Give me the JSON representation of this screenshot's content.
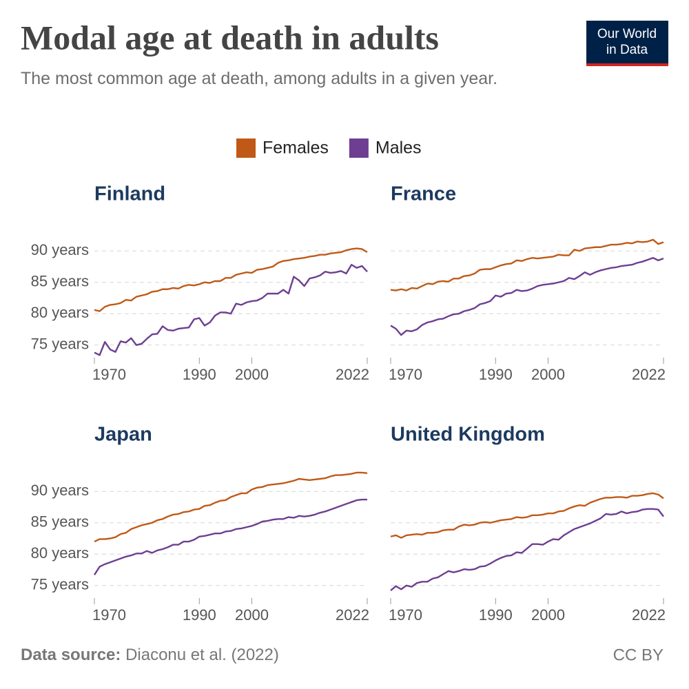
{
  "title": "Modal age at death in adults",
  "subtitle": "The most common age at death, among adults in a given year.",
  "logo": [
    "Our World",
    "in Data"
  ],
  "source_label": "Data source:",
  "source": "Diaconu et al. (2022)",
  "license": "CC BY",
  "chart_data": [
    {
      "type": "line",
      "title": "Finland",
      "x": [
        1970,
        1971,
        1972,
        1973,
        1974,
        1975,
        1976,
        1977,
        1978,
        1979,
        1980,
        1981,
        1982,
        1983,
        1984,
        1985,
        1986,
        1987,
        1988,
        1989,
        1990,
        1991,
        1992,
        1993,
        1994,
        1995,
        1996,
        1997,
        1998,
        1999,
        2000,
        2001,
        2002,
        2003,
        2004,
        2005,
        2006,
        2007,
        2008,
        2009,
        2010,
        2011,
        2012,
        2013,
        2014,
        2015,
        2016,
        2017,
        2018,
        2019,
        2020,
        2021,
        2022
      ],
      "xlim": [
        1970,
        2022
      ],
      "xticks": [
        1970,
        1990,
        2000,
        2022
      ],
      "ylim": [
        73,
        92
      ],
      "yticks": [
        {
          "value": 75,
          "label": "75 years"
        },
        {
          "value": 80,
          "label": "80 years"
        },
        {
          "value": 85,
          "label": "85 years"
        },
        {
          "value": 90,
          "label": "90 years"
        }
      ],
      "grid": true,
      "series": [
        {
          "name": "Females",
          "color": "#c05917",
          "values": [
            80.6,
            80.4,
            81.1,
            81.4,
            81.5,
            81.7,
            82.2,
            82.1,
            82.7,
            82.9,
            83.1,
            83.5,
            83.6,
            83.9,
            83.9,
            84.1,
            84.0,
            84.4,
            84.6,
            84.5,
            84.7,
            85.0,
            84.9,
            85.2,
            85.2,
            85.7,
            85.7,
            86.2,
            86.4,
            86.6,
            86.5,
            87.0,
            87.1,
            87.3,
            87.5,
            88.1,
            88.4,
            88.5,
            88.7,
            88.8,
            88.9,
            89.1,
            89.2,
            89.4,
            89.4,
            89.6,
            89.7,
            89.8,
            90.1,
            90.3,
            90.4,
            90.3,
            89.8
          ]
        },
        {
          "name": "Males",
          "color": "#6d3e91",
          "values": [
            73.8,
            73.4,
            75.5,
            74.3,
            73.9,
            75.6,
            75.4,
            76.1,
            75.0,
            75.2,
            76.0,
            76.7,
            76.8,
            78.0,
            77.4,
            77.3,
            77.6,
            77.7,
            77.8,
            79.1,
            79.3,
            78.1,
            78.6,
            79.7,
            80.2,
            80.2,
            80.0,
            81.6,
            81.4,
            81.8,
            82.0,
            82.1,
            82.5,
            83.2,
            83.2,
            83.2,
            83.8,
            83.2,
            85.9,
            85.3,
            84.4,
            85.6,
            85.8,
            86.1,
            86.7,
            86.5,
            86.6,
            86.8,
            86.4,
            87.8,
            87.3,
            87.6,
            86.7
          ]
        }
      ]
    },
    {
      "type": "line",
      "title": "France",
      "x": [
        1970,
        1971,
        1972,
        1973,
        1974,
        1975,
        1976,
        1977,
        1978,
        1979,
        1980,
        1981,
        1982,
        1983,
        1984,
        1985,
        1986,
        1987,
        1988,
        1989,
        1990,
        1991,
        1992,
        1993,
        1994,
        1995,
        1996,
        1997,
        1998,
        1999,
        2000,
        2001,
        2002,
        2003,
        2004,
        2005,
        2006,
        2007,
        2008,
        2009,
        2010,
        2011,
        2012,
        2013,
        2014,
        2015,
        2016,
        2017,
        2018,
        2019,
        2020,
        2021,
        2022
      ],
      "xlim": [
        1970,
        2022
      ],
      "xticks": [
        1970,
        1990,
        2000,
        2022
      ],
      "ylim": [
        73,
        92
      ],
      "yticks": [
        75,
        80,
        85,
        90
      ],
      "grid": true,
      "series": [
        {
          "name": "Females",
          "color": "#c05917",
          "values": [
            83.8,
            83.7,
            83.9,
            83.7,
            84.1,
            84.0,
            84.4,
            84.8,
            84.7,
            85.1,
            85.2,
            85.1,
            85.6,
            85.6,
            86.0,
            86.1,
            86.4,
            87.0,
            87.1,
            87.1,
            87.4,
            87.7,
            87.9,
            88.0,
            88.5,
            88.4,
            88.7,
            88.9,
            88.8,
            88.9,
            89.0,
            89.1,
            89.4,
            89.3,
            89.3,
            90.2,
            90.0,
            90.4,
            90.5,
            90.6,
            90.6,
            90.8,
            91.0,
            91.0,
            91.1,
            91.3,
            91.2,
            91.5,
            91.4,
            91.5,
            91.8,
            91.1,
            91.4
          ]
        },
        {
          "name": "Males",
          "color": "#6d3e91",
          "values": [
            78.1,
            77.6,
            76.6,
            77.3,
            77.2,
            77.5,
            78.2,
            78.6,
            78.8,
            79.1,
            79.2,
            79.6,
            79.9,
            80.0,
            80.4,
            80.6,
            80.9,
            81.5,
            81.7,
            82.0,
            82.9,
            82.7,
            83.2,
            83.3,
            83.8,
            83.6,
            83.7,
            84.0,
            84.4,
            84.6,
            84.7,
            84.8,
            85.0,
            85.2,
            85.7,
            85.5,
            86.0,
            86.6,
            86.2,
            86.6,
            86.9,
            87.1,
            87.3,
            87.4,
            87.6,
            87.7,
            87.8,
            88.1,
            88.3,
            88.6,
            88.9,
            88.5,
            88.8
          ]
        }
      ]
    },
    {
      "type": "line",
      "title": "Japan",
      "x": [
        1970,
        1971,
        1972,
        1973,
        1974,
        1975,
        1976,
        1977,
        1978,
        1979,
        1980,
        1981,
        1982,
        1983,
        1984,
        1985,
        1986,
        1987,
        1988,
        1989,
        1990,
        1991,
        1992,
        1993,
        1994,
        1995,
        1996,
        1997,
        1998,
        1999,
        2000,
        2001,
        2002,
        2003,
        2004,
        2005,
        2006,
        2007,
        2008,
        2009,
        2010,
        2011,
        2012,
        2013,
        2014,
        2015,
        2016,
        2017,
        2018,
        2019,
        2020,
        2021,
        2022
      ],
      "xlim": [
        1970,
        2022
      ],
      "xticks": [
        1970,
        1990,
        2000,
        2022
      ],
      "ylim": [
        73,
        92
      ],
      "yticks": [
        {
          "value": 75,
          "label": "75 years"
        },
        {
          "value": 80,
          "label": "80 years"
        },
        {
          "value": 85,
          "label": "85 years"
        },
        {
          "value": 90,
          "label": "90 years"
        }
      ],
      "grid": true,
      "series": [
        {
          "name": "Females",
          "color": "#c05917",
          "values": [
            82.0,
            82.4,
            82.4,
            82.5,
            82.7,
            83.2,
            83.4,
            84.0,
            84.3,
            84.6,
            84.8,
            85.0,
            85.4,
            85.6,
            86.0,
            86.3,
            86.4,
            86.7,
            86.8,
            87.1,
            87.2,
            87.7,
            87.8,
            88.2,
            88.5,
            88.6,
            89.1,
            89.4,
            89.7,
            89.7,
            90.3,
            90.6,
            90.7,
            91.0,
            91.1,
            91.2,
            91.3,
            91.5,
            91.7,
            92.0,
            91.9,
            91.8,
            91.9,
            92.0,
            92.1,
            92.4,
            92.6,
            92.6,
            92.7,
            92.8,
            93.0,
            93.0,
            92.9
          ]
        },
        {
          "name": "Males",
          "color": "#6d3e91",
          "values": [
            76.7,
            78.0,
            78.4,
            78.7,
            79.0,
            79.3,
            79.6,
            79.8,
            80.1,
            80.1,
            80.5,
            80.2,
            80.6,
            80.8,
            81.1,
            81.5,
            81.5,
            82.0,
            82.0,
            82.3,
            82.8,
            82.9,
            83.1,
            83.3,
            83.3,
            83.6,
            83.7,
            84.0,
            84.1,
            84.3,
            84.5,
            84.8,
            85.2,
            85.3,
            85.5,
            85.6,
            85.6,
            85.9,
            85.8,
            86.1,
            86.0,
            86.1,
            86.3,
            86.6,
            86.8,
            87.1,
            87.4,
            87.7,
            88.0,
            88.3,
            88.6,
            88.7,
            88.7
          ]
        }
      ]
    },
    {
      "type": "line",
      "title": "United Kingdom",
      "x": [
        1970,
        1971,
        1972,
        1973,
        1974,
        1975,
        1976,
        1977,
        1978,
        1979,
        1980,
        1981,
        1982,
        1983,
        1984,
        1985,
        1986,
        1987,
        1988,
        1989,
        1990,
        1991,
        1992,
        1993,
        1994,
        1995,
        1996,
        1997,
        1998,
        1999,
        2000,
        2001,
        2002,
        2003,
        2004,
        2005,
        2006,
        2007,
        2008,
        2009,
        2010,
        2011,
        2012,
        2013,
        2014,
        2015,
        2016,
        2017,
        2018,
        2019,
        2020,
        2021,
        2022
      ],
      "xlim": [
        1970,
        2022
      ],
      "xticks": [
        1970,
        1990,
        2000,
        2022
      ],
      "ylim": [
        73,
        92
      ],
      "yticks": [
        75,
        80,
        85,
        90
      ],
      "grid": true,
      "series": [
        {
          "name": "Females",
          "color": "#c05917",
          "values": [
            82.8,
            83.0,
            82.6,
            83.0,
            83.1,
            83.2,
            83.1,
            83.4,
            83.4,
            83.5,
            83.8,
            83.9,
            83.9,
            84.4,
            84.7,
            84.6,
            84.7,
            85.0,
            85.1,
            85.0,
            85.2,
            85.4,
            85.5,
            85.6,
            85.9,
            85.8,
            85.9,
            86.2,
            86.2,
            86.3,
            86.5,
            86.5,
            86.8,
            86.9,
            87.3,
            87.6,
            87.8,
            87.7,
            88.2,
            88.5,
            88.8,
            89.0,
            89.0,
            89.1,
            89.1,
            89.0,
            89.3,
            89.3,
            89.4,
            89.6,
            89.7,
            89.5,
            88.9
          ]
        },
        {
          "name": "Males",
          "color": "#6d3e91",
          "values": [
            74.2,
            74.9,
            74.4,
            75.0,
            74.8,
            75.4,
            75.6,
            75.6,
            76.1,
            76.3,
            76.8,
            77.3,
            77.1,
            77.3,
            77.6,
            77.5,
            77.6,
            78.0,
            78.1,
            78.5,
            79.0,
            79.4,
            79.7,
            79.8,
            80.3,
            80.2,
            80.9,
            81.6,
            81.6,
            81.5,
            82.0,
            82.4,
            82.3,
            83.0,
            83.5,
            84.0,
            84.3,
            84.6,
            84.9,
            85.3,
            85.7,
            86.4,
            86.3,
            86.4,
            86.8,
            86.5,
            86.7,
            86.8,
            87.1,
            87.2,
            87.2,
            87.1,
            86.0
          ]
        }
      ]
    }
  ]
}
